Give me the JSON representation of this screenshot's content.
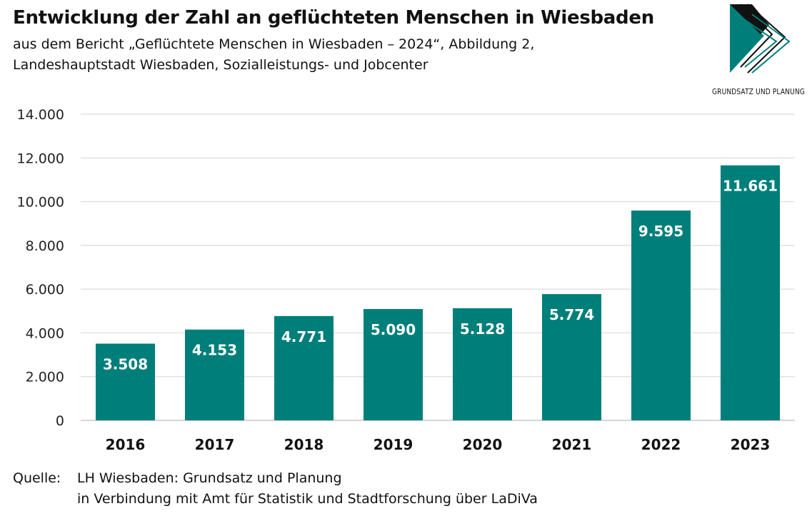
{
  "header": {
    "title": "Entwicklung der Zahl an geflüchteten Menschen in Wiesbaden",
    "subtitle_line1": "aus dem Bericht „Geflüchtete Menschen in Wiesbaden – 2024“, Abbildung 2,",
    "subtitle_line2": "Landeshauptstadt Wiesbaden, Sozialleistungs- und Jobcenter"
  },
  "logo": {
    "text": "GRUNDSATZ UND PLANUNG"
  },
  "chart_data": {
    "type": "bar",
    "categories": [
      "2016",
      "2017",
      "2018",
      "2019",
      "2020",
      "2021",
      "2022",
      "2023"
    ],
    "values": [
      3508,
      4153,
      4771,
      5090,
      5128,
      5774,
      9595,
      11661
    ],
    "value_labels": [
      "3.508",
      "4.153",
      "4.771",
      "5.090",
      "5.128",
      "5.774",
      "9.595",
      "11.661"
    ],
    "yticks": [
      0,
      2000,
      4000,
      6000,
      8000,
      10000,
      12000,
      14000
    ],
    "ytick_labels": [
      "0",
      "2.000",
      "4.000",
      "6.000",
      "8.000",
      "10.000",
      "12.000",
      "14.000"
    ],
    "ylim": [
      0,
      14000
    ],
    "grid": true,
    "bar_color": "#007f7a"
  },
  "source": {
    "label": "Quelle:",
    "line1": "LH Wiesbaden: Grundsatz und Planung",
    "line2": "in Verbindung mit Amt für Statistik und Stadtforschung über LaDiVa"
  }
}
